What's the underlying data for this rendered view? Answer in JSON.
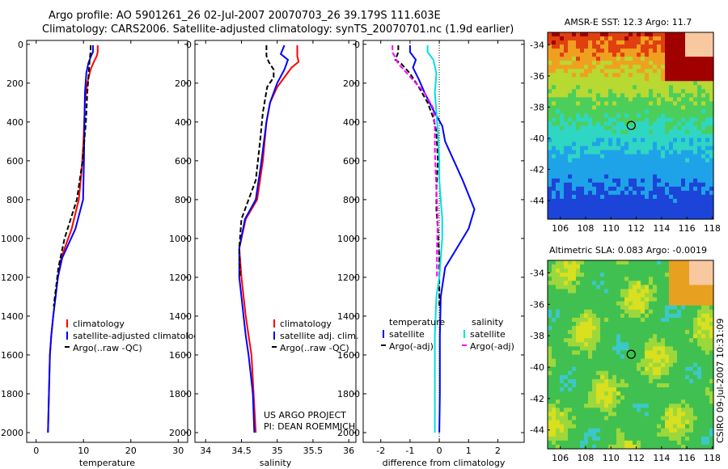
{
  "header": {
    "line1": "Argo profile: AO 5901261_26 02-Jul-2007 20070703_26 39.179S 111.603E",
    "line2": "Climatology: CARS2006. Satellite-adjusted climatology: synTS_20070701.nc (1.9d earlier)"
  },
  "side_stamp": "CSIRO 09-Jul-2007 10:31:09",
  "colors": {
    "red": "#ff0000",
    "blue": "#0000ff",
    "black": "#000000",
    "cyan": "#00e0e0",
    "magenta": "#ff00ff"
  },
  "chart_data": [
    {
      "type": "line",
      "id": "temp",
      "xlabel": "temperature",
      "ylabel": "",
      "xlim": [
        -2,
        32
      ],
      "ylim": [
        2050,
        -20
      ],
      "xticks": [
        0,
        10,
        20,
        30
      ],
      "yticks": [
        0,
        200,
        400,
        600,
        800,
        1000,
        1200,
        1400,
        1600,
        1800,
        2000
      ],
      "series": [
        {
          "name": "climatology",
          "color": "red",
          "dash": false,
          "x": [
            13.0,
            13.0,
            12.8,
            12.2,
            11.5,
            10.8,
            10.3,
            10.0,
            9.6,
            9.0,
            7.5,
            5.3,
            4.6,
            4.1,
            3.6,
            3.2,
            2.9,
            2.7,
            2.5
          ],
          "y": [
            5,
            40,
            60,
            90,
            130,
            200,
            300,
            500,
            650,
            800,
            950,
            1100,
            1200,
            1300,
            1400,
            1500,
            1600,
            1800,
            2000
          ]
        },
        {
          "name": "satellite-adjusted climatology",
          "color": "blue",
          "dash": false,
          "x": [
            12.0,
            12.0,
            11.6,
            11.0,
            10.6,
            10.3,
            10.2,
            10.1,
            9.9,
            8.3,
            5.5,
            4.6,
            4.1,
            3.6,
            3.2,
            2.9,
            2.7,
            2.5
          ],
          "y": [
            5,
            40,
            60,
            100,
            150,
            250,
            400,
            600,
            800,
            950,
            1100,
            1200,
            1300,
            1400,
            1500,
            1600,
            1800,
            2000
          ]
        },
        {
          "name": "Argo(..raw -QC)",
          "color": "black",
          "dash": true,
          "x": [
            11.5,
            11.5,
            11.3,
            11.1,
            10.8,
            10.5,
            9.8,
            8.6,
            6.0,
            4.7,
            4.2,
            3.7
          ],
          "y": [
            5,
            40,
            80,
            150,
            250,
            400,
            600,
            800,
            1000,
            1150,
            1250,
            1350
          ]
        }
      ]
    },
    {
      "type": "line",
      "id": "sal",
      "xlabel": "salinity",
      "ylabel": "",
      "xlim": [
        33.85,
        36.1
      ],
      "ylim": [
        2050,
        -20
      ],
      "xticks": [
        34,
        34.5,
        35,
        35.5,
        36
      ],
      "xticklabels": [
        "34",
        "34.5",
        "35",
        "35.5",
        "36"
      ],
      "yticks": [
        0,
        200,
        400,
        600,
        800,
        1000,
        1200,
        1400,
        1600,
        1800,
        2000
      ],
      "series": [
        {
          "name": "climatology",
          "color": "red",
          "dash": false,
          "x": [
            35.28,
            35.28,
            35.3,
            35.2,
            35.1,
            35.0,
            34.9,
            34.85,
            34.8,
            34.72,
            34.56,
            34.47,
            34.5,
            34.53,
            34.56,
            34.6,
            34.64,
            34.67,
            34.7
          ],
          "y": [
            5,
            60,
            90,
            120,
            170,
            220,
            300,
            400,
            600,
            800,
            900,
            1050,
            1200,
            1300,
            1400,
            1500,
            1600,
            1800,
            2000
          ]
        },
        {
          "name": "satellite adj. clim.",
          "color": "blue",
          "dash": false,
          "x": [
            35.1,
            35.05,
            35.15,
            35.1,
            35.0,
            34.9,
            34.85,
            34.78,
            34.7,
            34.55,
            34.47,
            34.47,
            34.5,
            34.53,
            34.56,
            34.6,
            34.63,
            34.66,
            34.68
          ],
          "y": [
            5,
            50,
            80,
            130,
            200,
            300,
            400,
            600,
            800,
            900,
            1050,
            1200,
            1300,
            1400,
            1500,
            1600,
            1700,
            1800,
            2000
          ]
        },
        {
          "name": "Argo(..raw -QC)",
          "color": "black",
          "dash": true,
          "x": [
            34.85,
            34.85,
            34.88,
            34.95,
            34.95,
            34.86,
            34.8,
            34.76,
            34.7,
            34.6,
            34.5,
            34.47,
            34.48
          ],
          "y": [
            5,
            60,
            90,
            130,
            170,
            220,
            350,
            500,
            700,
            800,
            900,
            1050,
            1200
          ]
        }
      ],
      "annotation": [
        "US ARGO PROJECT",
        "PI: DEAN ROEMMICH"
      ]
    },
    {
      "type": "line",
      "id": "diff",
      "xlabel": "difference from climatology",
      "ylabel": "",
      "xlim": [
        -2.6,
        2.9
      ],
      "ylim": [
        2050,
        -20
      ],
      "xticks": [
        -2,
        -1,
        0,
        1,
        2
      ],
      "yticks": [
        0,
        200,
        400,
        600,
        800,
        1000,
        1200,
        1400,
        1600,
        1800,
        2000
      ],
      "zero_line": true,
      "legend_headers": [
        "temperature",
        "salinity"
      ],
      "series": [
        {
          "name": "satellite",
          "group": "temperature",
          "color": "blue",
          "dash": false,
          "x": [
            -1.0,
            -1.0,
            -0.8,
            -0.9,
            -0.7,
            -0.5,
            -0.2,
            0.1,
            0.2,
            0.5,
            0.8,
            1.2,
            1.0,
            0.6,
            0.2,
            0.05,
            0.02,
            0.02,
            0.0
          ],
          "y": [
            5,
            40,
            80,
            120,
            180,
            250,
            340,
            420,
            500,
            600,
            700,
            850,
            950,
            1050,
            1150,
            1300,
            1500,
            1800,
            2000
          ]
        },
        {
          "name": "Argo(-adj)",
          "group": "temperature",
          "color": "black",
          "dash": true,
          "x": [
            -1.4,
            -1.4,
            -1.5,
            -1.3,
            -1.0,
            -0.7,
            -0.4,
            -0.2,
            -0.1,
            -0.05,
            -0.1,
            -0.1,
            -0.05,
            0.0,
            0.0
          ],
          "y": [
            5,
            40,
            80,
            100,
            150,
            220,
            300,
            380,
            450,
            600,
            750,
            850,
            950,
            1100,
            1350
          ]
        },
        {
          "name": "satellite",
          "group": "salinity",
          "color": "cyan",
          "dash": false,
          "x": [
            -0.4,
            -0.4,
            -0.2,
            -0.1,
            -0.15,
            -0.1,
            -0.05,
            0.0,
            0.0,
            0.05,
            0.1,
            0.1,
            0.05,
            0.0,
            -0.1,
            -0.15,
            -0.15,
            -0.15,
            -0.15
          ],
          "y": [
            5,
            40,
            80,
            150,
            250,
            350,
            450,
            600,
            700,
            800,
            900,
            1000,
            1100,
            1200,
            1300,
            1500,
            1700,
            1900,
            2000
          ]
        },
        {
          "name": "Argo(-adj)",
          "group": "salinity",
          "color": "magenta",
          "dash": true,
          "x": [
            -1.6,
            -1.6,
            -1.4,
            -1.1,
            -0.8,
            -0.5,
            -0.2,
            -0.15,
            -0.15,
            -0.1,
            -0.05,
            -0.08,
            -0.08
          ],
          "y": [
            5,
            40,
            100,
            150,
            200,
            250,
            330,
            420,
            550,
            750,
            900,
            1050,
            1200
          ]
        }
      ]
    },
    {
      "type": "heatmap",
      "id": "sst_map",
      "title": "AMSR-E SST: 12.3 Argo: 11.7",
      "xlim": [
        105,
        118.1
      ],
      "ylim": [
        -45.2,
        -33.2
      ],
      "xticks": [
        106,
        108,
        110,
        112,
        114,
        116,
        118
      ],
      "yticks": [
        -34,
        -36,
        -38,
        -40,
        -42,
        -44
      ],
      "marker": {
        "lon": 111.6,
        "lat": -39.18
      }
    },
    {
      "type": "heatmap",
      "id": "sla_map",
      "title": "Altimetric SLA: 0.083 Argo: -0.0019",
      "xlim": [
        105,
        118.1
      ],
      "ylim": [
        -45.2,
        -33.2
      ],
      "xticks": [
        106,
        108,
        110,
        112,
        114,
        116,
        118
      ],
      "yticks": [
        -34,
        -36,
        -38,
        -40,
        -42,
        -44
      ],
      "marker": {
        "lon": 111.6,
        "lat": -39.18
      }
    }
  ],
  "legends": {
    "temp": [
      {
        "label": "climatology",
        "color": "red",
        "dash": false
      },
      {
        "label": "satellite-adjusted climatology",
        "color": "blue",
        "dash": false
      },
      {
        "label": "Argo(..raw -QC)",
        "color": "black",
        "dash": true
      }
    ],
    "sal": [
      {
        "label": "climatology",
        "color": "red",
        "dash": false
      },
      {
        "label": "satellite adj. clim.",
        "color": "blue",
        "dash": false
      },
      {
        "label": "Argo(..raw -QC)",
        "color": "black",
        "dash": true
      }
    ],
    "diff_temp": [
      {
        "label": "satellite",
        "color": "blue",
        "dash": false
      },
      {
        "label": "Argo(-adj)",
        "color": "black",
        "dash": true
      }
    ],
    "diff_sal": [
      {
        "label": "satellite",
        "color": "cyan",
        "dash": false
      },
      {
        "label": "Argo(-adj)",
        "color": "magenta",
        "dash": true
      }
    ]
  }
}
